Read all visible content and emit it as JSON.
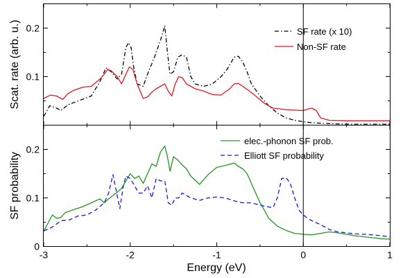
{
  "chart_data": [
    {
      "type": "line",
      "ylabel": "Scat. rate (arb. u.)",
      "xlim": [
        -3,
        1
      ],
      "ylim": [
        0,
        0.25
      ],
      "yticks": [
        0.1,
        0.2
      ],
      "yticklabels": [
        "0.1",
        "0.2"
      ],
      "vline_x": 0,
      "legend": "top-right",
      "series": [
        {
          "name": "SF rate (x 10)",
          "color": "#000000",
          "style": "dashdot",
          "x": [
            -3,
            -2.93,
            -2.85,
            -2.8,
            -2.72,
            -2.6,
            -2.45,
            -2.35,
            -2.28,
            -2.22,
            -2.15,
            -2.1,
            -2.05,
            -2.02,
            -1.99,
            -1.96,
            -1.92,
            -1.85,
            -1.8,
            -1.72,
            -1.65,
            -1.6,
            -1.57,
            -1.54,
            -1.5,
            -1.45,
            -1.4,
            -1.35,
            -1.3,
            -1.25,
            -1.15,
            -1.05,
            -0.95,
            -0.88,
            -0.8,
            -0.75,
            -0.7,
            -0.65,
            -0.6,
            -0.5,
            -0.4,
            -0.3,
            -0.2,
            -0.1,
            0,
            0.1,
            0.2,
            0.3,
            0.5,
            0.7,
            1.0
          ],
          "y": [
            0.018,
            0.04,
            0.035,
            0.03,
            0.042,
            0.05,
            0.06,
            0.09,
            0.118,
            0.11,
            0.095,
            0.105,
            0.16,
            0.17,
            0.16,
            0.12,
            0.085,
            0.08,
            0.105,
            0.14,
            0.175,
            0.205,
            0.15,
            0.105,
            0.11,
            0.14,
            0.145,
            0.14,
            0.1,
            0.085,
            0.08,
            0.085,
            0.1,
            0.115,
            0.14,
            0.142,
            0.13,
            0.11,
            0.085,
            0.06,
            0.04,
            0.025,
            0.015,
            0.01,
            0.007,
            0.005,
            0.004,
            0.003,
            0.002,
            0.002,
            0.002
          ]
        },
        {
          "name": "Non-SF rate",
          "color": "#e8141e",
          "style": "solid",
          "x": [
            -3,
            -2.92,
            -2.85,
            -2.78,
            -2.72,
            -2.65,
            -2.55,
            -2.45,
            -2.35,
            -2.3,
            -2.26,
            -2.22,
            -2.15,
            -2.1,
            -2.05,
            -2.01,
            -1.97,
            -1.92,
            -1.85,
            -1.8,
            -1.75,
            -1.7,
            -1.65,
            -1.6,
            -1.56,
            -1.52,
            -1.48,
            -1.44,
            -1.4,
            -1.35,
            -1.25,
            -1.15,
            -1.05,
            -0.95,
            -0.85,
            -0.8,
            -0.75,
            -0.7,
            -0.62,
            -0.55,
            -0.45,
            -0.35,
            -0.2,
            0,
            0.05,
            0.1,
            0.15,
            0.2,
            0.3,
            0.5,
            0.7,
            1.0
          ],
          "y": [
            0.055,
            0.062,
            0.06,
            0.053,
            0.065,
            0.072,
            0.078,
            0.08,
            0.095,
            0.105,
            0.115,
            0.112,
            0.1,
            0.085,
            0.105,
            0.12,
            0.115,
            0.085,
            0.055,
            0.058,
            0.068,
            0.075,
            0.08,
            0.085,
            0.07,
            0.06,
            0.085,
            0.1,
            0.098,
            0.085,
            0.075,
            0.07,
            0.063,
            0.062,
            0.075,
            0.085,
            0.086,
            0.08,
            0.07,
            0.06,
            0.045,
            0.035,
            0.032,
            0.03,
            0.033,
            0.035,
            0.03,
            0.015,
            0.01,
            0.009,
            0.009,
            0.009
          ]
        }
      ]
    },
    {
      "type": "line",
      "xlabel": "Energy (eV)",
      "ylabel": "SF probability",
      "xlim": [
        -3,
        1
      ],
      "ylim": [
        0,
        0.25
      ],
      "xticks": [
        -3,
        -2,
        -1,
        0,
        1
      ],
      "xticklabels": [
        "-3",
        "-2",
        "-1",
        "0",
        "1"
      ],
      "yticks": [
        0,
        0.1,
        0.2
      ],
      "yticklabels": [
        "0",
        "0.1",
        "0.2"
      ],
      "vline_x": 0,
      "legend": "top-right",
      "series": [
        {
          "name": "elec.-phonon SF prob.",
          "color": "#1e961e",
          "style": "solid",
          "x": [
            -3,
            -2.95,
            -2.9,
            -2.85,
            -2.8,
            -2.75,
            -2.65,
            -2.55,
            -2.45,
            -2.35,
            -2.3,
            -2.25,
            -2.2,
            -2.15,
            -2.1,
            -2.05,
            -2.0,
            -1.95,
            -1.9,
            -1.85,
            -1.8,
            -1.75,
            -1.7,
            -1.65,
            -1.6,
            -1.57,
            -1.54,
            -1.5,
            -1.45,
            -1.4,
            -1.35,
            -1.3,
            -1.2,
            -1.1,
            -1.0,
            -0.9,
            -0.8,
            -0.75,
            -0.7,
            -0.65,
            -0.6,
            -0.55,
            -0.5,
            -0.45,
            -0.4,
            -0.3,
            -0.2,
            -0.1,
            0,
            0.1,
            0.2,
            0.3,
            0.4,
            0.5,
            0.6,
            0.7,
            0.8,
            0.9,
            1.0
          ],
          "y": [
            0.032,
            0.048,
            0.065,
            0.058,
            0.06,
            0.07,
            0.076,
            0.082,
            0.09,
            0.098,
            0.09,
            0.098,
            0.105,
            0.112,
            0.12,
            0.135,
            0.15,
            0.14,
            0.145,
            0.13,
            0.15,
            0.17,
            0.165,
            0.195,
            0.207,
            0.185,
            0.155,
            0.185,
            0.178,
            0.168,
            0.16,
            0.145,
            0.128,
            0.148,
            0.163,
            0.167,
            0.172,
            0.165,
            0.16,
            0.15,
            0.13,
            0.11,
            0.09,
            0.075,
            0.058,
            0.042,
            0.033,
            0.027,
            0.025,
            0.024,
            0.027,
            0.03,
            0.028,
            0.025,
            0.022,
            0.02,
            0.018,
            0.016,
            0.015
          ]
        },
        {
          "name": "Elliott SF probability",
          "color": "#1414e6",
          "style": "dashed",
          "x": [
            -3,
            -2.9,
            -2.8,
            -2.7,
            -2.6,
            -2.5,
            -2.4,
            -2.3,
            -2.25,
            -2.2,
            -2.15,
            -2.12,
            -2.08,
            -2.05,
            -2.0,
            -1.95,
            -1.9,
            -1.85,
            -1.8,
            -1.75,
            -1.7,
            -1.65,
            -1.6,
            -1.56,
            -1.52,
            -1.48,
            -1.44,
            -1.4,
            -1.3,
            -1.2,
            -1.1,
            -1.0,
            -0.9,
            -0.8,
            -0.7,
            -0.6,
            -0.5,
            -0.42,
            -0.35,
            -0.3,
            -0.25,
            -0.2,
            -0.15,
            -0.1,
            -0.05,
            0,
            0.05,
            0.1,
            0.2,
            0.3,
            0.4,
            0.5,
            0.6,
            0.7,
            0.8,
            0.9,
            1.0
          ],
          "y": [
            0.032,
            0.04,
            0.053,
            0.055,
            0.063,
            0.065,
            0.075,
            0.09,
            0.11,
            0.148,
            0.105,
            0.078,
            0.125,
            0.145,
            0.14,
            0.125,
            0.11,
            0.11,
            0.125,
            0.1,
            0.14,
            0.135,
            0.135,
            0.09,
            0.085,
            0.1,
            0.1,
            0.11,
            0.1,
            0.095,
            0.1,
            0.102,
            0.1,
            0.094,
            0.09,
            0.09,
            0.085,
            0.082,
            0.08,
            0.1,
            0.14,
            0.142,
            0.13,
            0.1,
            0.075,
            0.065,
            0.058,
            0.053,
            0.045,
            0.035,
            0.03,
            0.028,
            0.026,
            0.025,
            0.024,
            0.022,
            0.02
          ]
        }
      ]
    }
  ]
}
